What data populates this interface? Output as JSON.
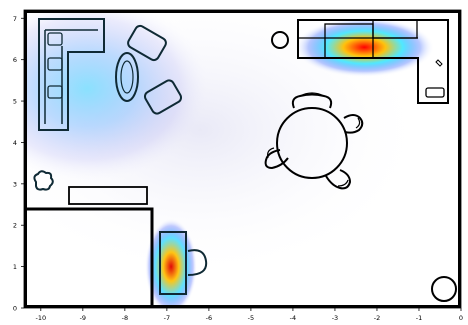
{
  "chart_data": {
    "type": "heatmap",
    "title": "",
    "xlabel": "",
    "ylabel": "",
    "xlim": [
      -10.4,
      0
    ],
    "ylim": [
      0,
      7.2
    ],
    "x_ticks": [
      "-10",
      "-9",
      "-8",
      "-7",
      "-6",
      "-5",
      "-4",
      "-3",
      "-2",
      "-1",
      "0"
    ],
    "y_ticks": [
      "0",
      "1",
      "2",
      "3",
      "4",
      "5",
      "6",
      "7"
    ],
    "hotspots": [
      {
        "name": "kitchen-counter",
        "x": -2.3,
        "y": 6.3,
        "intensity": 1.0
      },
      {
        "name": "hallway-desk",
        "x": -6.9,
        "y": 1.0,
        "intensity": 0.95
      },
      {
        "name": "living-room-sofa",
        "x": -8.9,
        "y": 5.3,
        "intensity": 0.45
      }
    ],
    "colors": {
      "low": "#ffffff",
      "mid_low": "#3ec8ff",
      "mid": "#2040ff",
      "mid_high": "#ffff00",
      "high": "#ff0000",
      "walls": "#000000",
      "furniture_stroke": "#0f2a35"
    }
  }
}
